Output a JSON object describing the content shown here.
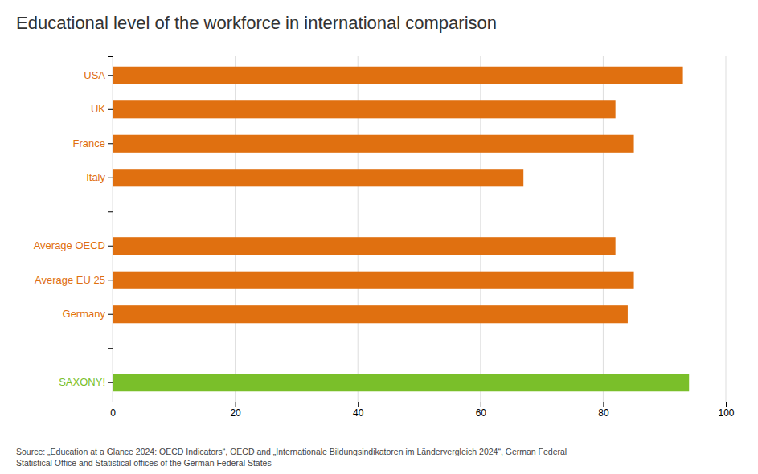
{
  "chart_data": {
    "type": "bar",
    "orientation": "horizontal",
    "title": "Educational level of the workforce in international comparison",
    "categories": [
      "SAXONY!",
      null,
      "Germany",
      "Average EU 25",
      "Average OECD",
      null,
      "Italy",
      "France",
      "UK",
      "USA"
    ],
    "values": [
      94,
      null,
      84,
      85,
      82,
      null,
      67,
      85,
      82,
      93
    ],
    "colors": [
      "#7abf2a",
      null,
      "#e07010",
      "#e07010",
      "#e07010",
      null,
      "#e07010",
      "#e07010",
      "#e07010",
      "#e07010"
    ],
    "xlim": [
      0,
      100
    ],
    "xticks": [
      0,
      20,
      40,
      60,
      80,
      100
    ],
    "grid": true,
    "source": "Source: „Education at a Glance 2024: OECD Indicators“, OECD and „Internationale Bildungsindikatoren im Ländervergleich  2024“, German Federal\nStatistical Office and Statistical offices of the German Federal States"
  }
}
